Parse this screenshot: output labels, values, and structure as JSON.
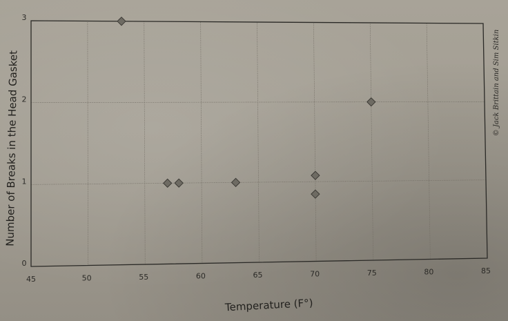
{
  "chart_data": {
    "type": "scatter",
    "title": "",
    "xlabel": "Temperature (F°)",
    "ylabel": "Number of Breaks in the Head Gasket",
    "xlim": [
      45,
      85
    ],
    "ylim": [
      0,
      3
    ],
    "x_ticks": [
      "45",
      "50",
      "55",
      "60",
      "65",
      "70",
      "75",
      "80",
      "85"
    ],
    "y_ticks": [
      "0",
      "1",
      "2",
      "3"
    ],
    "grid": true,
    "points": [
      {
        "x": 53,
        "y": 3
      },
      {
        "x": 57,
        "y": 1
      },
      {
        "x": 58,
        "y": 1
      },
      {
        "x": 63,
        "y": 1
      },
      {
        "x": 70,
        "y": 1
      },
      {
        "x": 70,
        "y": 1
      },
      {
        "x": 75,
        "y": 2
      }
    ],
    "marker_color": "#6e6b63",
    "marker_shape": "diamond"
  },
  "copyright": "© Jack Brittain and Sim Sitkin"
}
